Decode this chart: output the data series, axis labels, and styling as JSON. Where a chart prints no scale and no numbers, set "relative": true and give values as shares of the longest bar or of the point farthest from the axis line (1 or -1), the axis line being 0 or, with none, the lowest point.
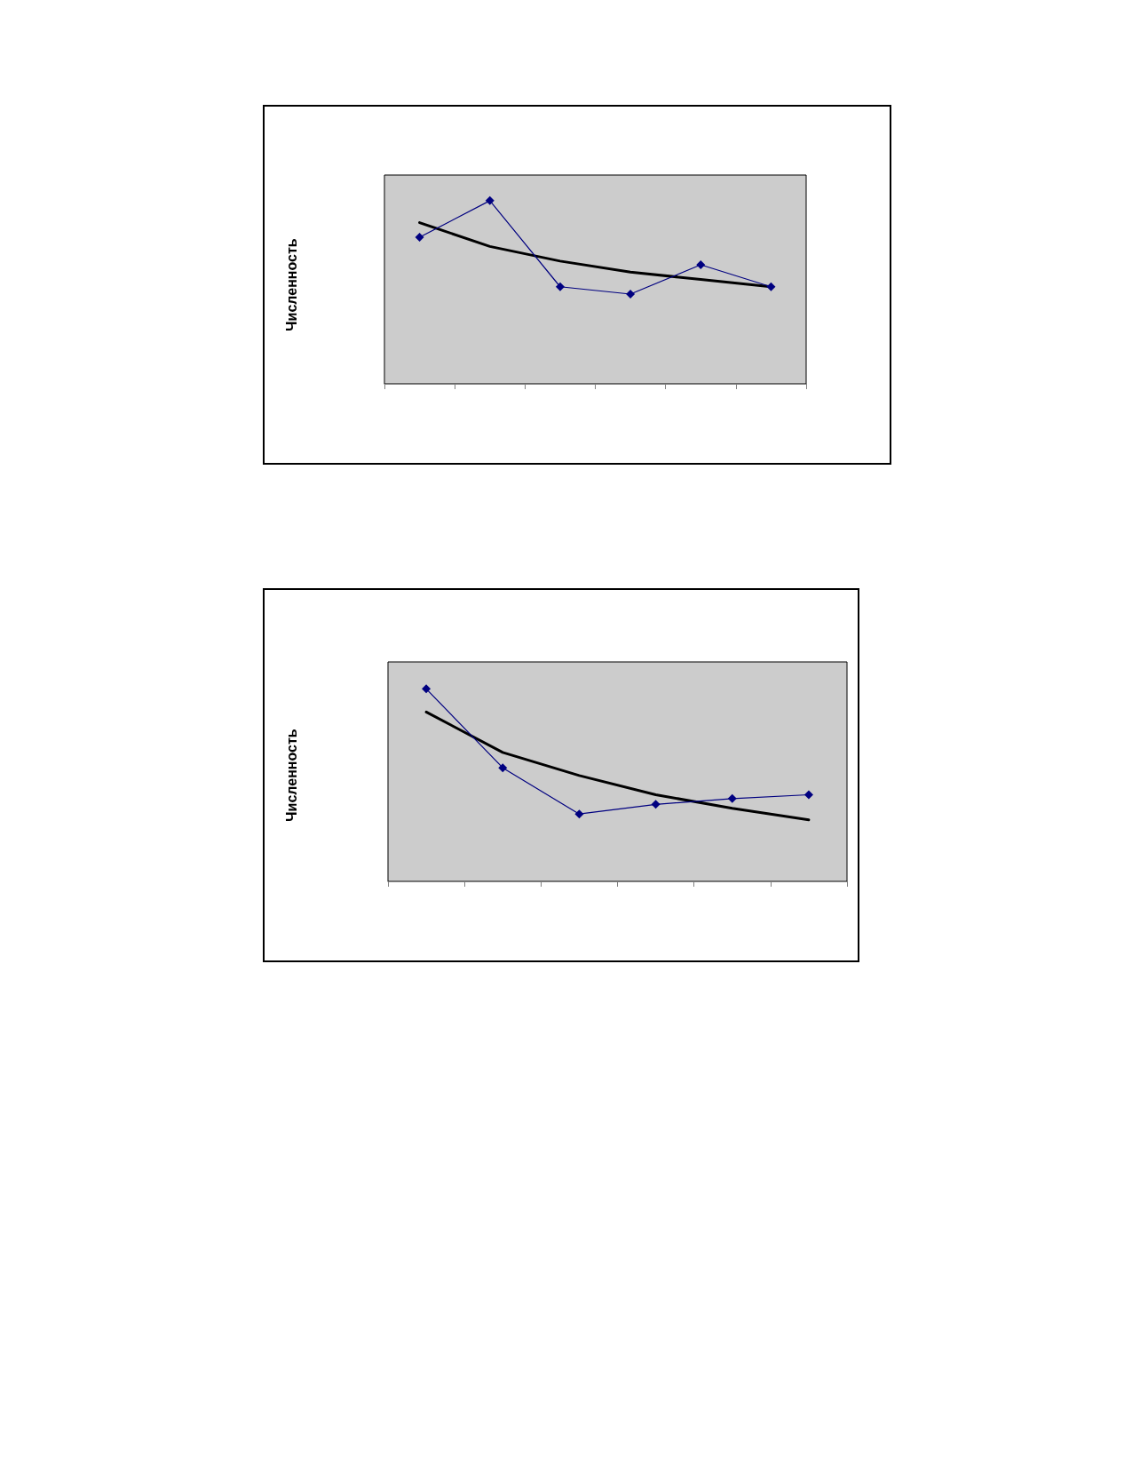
{
  "chart_data": [
    {
      "type": "line",
      "ylabel": "Численность",
      "relative": true,
      "categories": [
        null,
        null,
        null,
        null,
        null,
        null
      ],
      "grid": false,
      "series": [
        {
          "color": "#000080",
          "marker": "diamond",
          "values": [
            0.8,
            1,
            0.53,
            0.49,
            0.65,
            0.53
          ]
        },
        {
          "color": "#000000",
          "marker": "none",
          "values": [
            0.88,
            0.75,
            0.67,
            0.61,
            0.57,
            0.53
          ]
        }
      ]
    },
    {
      "type": "line",
      "ylabel": "Численность",
      "relative": true,
      "categories": [
        null,
        null,
        null,
        null,
        null,
        null
      ],
      "grid": false,
      "series": [
        {
          "color": "#000080",
          "marker": "diamond",
          "values": [
            1,
            0.59,
            0.35,
            0.4,
            0.43,
            0.45
          ]
        },
        {
          "color": "#000000",
          "marker": "none",
          "values": [
            0.88,
            0.67,
            0.55,
            0.45,
            0.38,
            0.32
          ]
        }
      ]
    }
  ]
}
